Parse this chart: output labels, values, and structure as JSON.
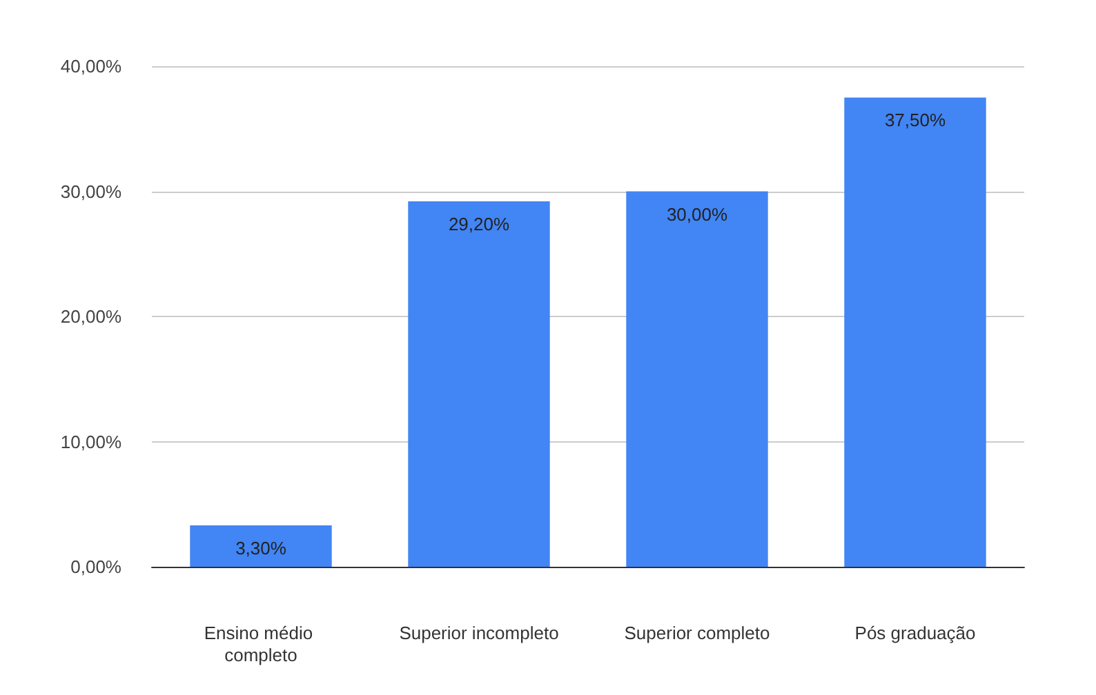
{
  "chart_data": {
    "type": "bar",
    "categories": [
      "Ensino médio completo",
      "Superior incompleto",
      "Superior completo",
      "Pós graduação"
    ],
    "values": [
      3.3,
      29.2,
      30,
      37.5
    ],
    "value_labels": [
      "3,30%",
      "29,20%",
      "30,00%",
      "37,50%"
    ],
    "color": "#4285f4",
    "ylim": [
      0,
      40
    ],
    "yticks": [
      {
        "value": 0,
        "label": "0,00%"
      },
      {
        "value": 10,
        "label": "10,00%"
      },
      {
        "value": 20,
        "label": "20,00%"
      },
      {
        "value": 30,
        "label": "30,00%"
      },
      {
        "value": 40,
        "label": "40,00%"
      }
    ],
    "grid": "y"
  }
}
